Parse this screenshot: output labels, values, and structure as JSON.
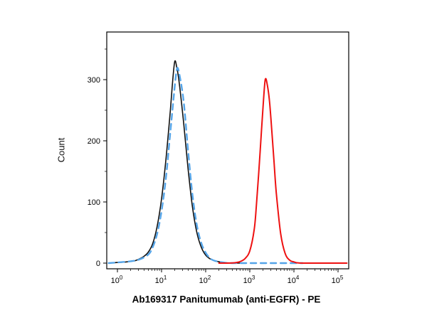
{
  "figure": {
    "y_axis_label": "Count",
    "x_axis_title": "Ab169317 Panitumumab (anti-EGFR) - PE"
  },
  "chart_data": {
    "type": "line",
    "subtype": "flow-cytometry-histogram-overlay",
    "title": "",
    "xlabel": "Ab169317 Panitumumab (anti-EGFR) - PE",
    "ylabel": "Count",
    "x_scale": "log10",
    "x_ticks": [
      "10^0",
      "10^1",
      "10^2",
      "10^3",
      "10^4",
      "10^5"
    ],
    "x_tick_exponents": [
      0,
      1,
      2,
      3,
      4,
      5
    ],
    "y_ticks": [
      0,
      100,
      200,
      300
    ],
    "y_minor_ticks": [
      50,
      150,
      250,
      350
    ],
    "xlim_log10": [
      -0.24,
      5.24
    ],
    "ylim": [
      0,
      385
    ],
    "grid": false,
    "legend": "none",
    "series": [
      {
        "name": "control-black-solid",
        "color": "#111111",
        "line_style": "solid",
        "line_width": 1.6,
        "peak": {
          "x_log10": 1.3,
          "count": 330
        },
        "points_log10x_count": [
          [
            -0.2,
            0
          ],
          [
            0,
            1
          ],
          [
            0.2,
            2
          ],
          [
            0.4,
            4
          ],
          [
            0.5,
            7
          ],
          [
            0.6,
            11
          ],
          [
            0.7,
            18
          ],
          [
            0.8,
            32
          ],
          [
            0.9,
            60
          ],
          [
            1.0,
            105
          ],
          [
            1.1,
            170
          ],
          [
            1.2,
            250
          ],
          [
            1.25,
            296
          ],
          [
            1.3,
            330
          ],
          [
            1.35,
            318
          ],
          [
            1.4,
            295
          ],
          [
            1.5,
            230
          ],
          [
            1.6,
            155
          ],
          [
            1.7,
            92
          ],
          [
            1.8,
            50
          ],
          [
            1.9,
            26
          ],
          [
            2.0,
            13
          ],
          [
            2.1,
            7
          ],
          [
            2.2,
            4
          ],
          [
            2.4,
            1
          ],
          [
            2.6,
            0
          ],
          [
            2.9,
            0
          ]
        ]
      },
      {
        "name": "control-blue-dashed",
        "color": "#54a4e8",
        "line_style": "dashed",
        "dash": "8 6",
        "line_width": 2.4,
        "peak": {
          "x_log10": 1.35,
          "count": 318
        },
        "points_log10x_count": [
          [
            -0.2,
            0
          ],
          [
            0,
            1
          ],
          [
            0.3,
            3
          ],
          [
            0.5,
            6
          ],
          [
            0.7,
            14
          ],
          [
            0.8,
            26
          ],
          [
            0.9,
            48
          ],
          [
            1.0,
            85
          ],
          [
            1.1,
            140
          ],
          [
            1.2,
            215
          ],
          [
            1.3,
            290
          ],
          [
            1.35,
            318
          ],
          [
            1.4,
            310
          ],
          [
            1.5,
            265
          ],
          [
            1.6,
            185
          ],
          [
            1.7,
            112
          ],
          [
            1.8,
            62
          ],
          [
            1.9,
            33
          ],
          [
            2.0,
            17
          ],
          [
            2.1,
            8
          ],
          [
            2.2,
            4
          ],
          [
            2.4,
            1
          ],
          [
            2.6,
            0
          ],
          [
            3.0,
            0
          ],
          [
            3.5,
            0
          ],
          [
            4.0,
            0
          ],
          [
            4.2,
            0
          ]
        ]
      },
      {
        "name": "panitumumab-pe-red-solid",
        "color": "#ee1111",
        "line_style": "solid",
        "line_width": 2.0,
        "peak": {
          "x_log10": 3.35,
          "count": 300
        },
        "points_log10x_count": [
          [
            2.3,
            0
          ],
          [
            2.5,
            0
          ],
          [
            2.7,
            1
          ],
          [
            2.8,
            3
          ],
          [
            2.9,
            8
          ],
          [
            3.0,
            20
          ],
          [
            3.1,
            55
          ],
          [
            3.15,
            95
          ],
          [
            3.2,
            145
          ],
          [
            3.25,
            200
          ],
          [
            3.3,
            255
          ],
          [
            3.35,
            300
          ],
          [
            3.4,
            290
          ],
          [
            3.45,
            262
          ],
          [
            3.5,
            215
          ],
          [
            3.55,
            165
          ],
          [
            3.6,
            115
          ],
          [
            3.7,
            48
          ],
          [
            3.8,
            16
          ],
          [
            3.9,
            5
          ],
          [
            4.0,
            2
          ],
          [
            4.2,
            0
          ],
          [
            5.2,
            0
          ]
        ]
      }
    ]
  }
}
